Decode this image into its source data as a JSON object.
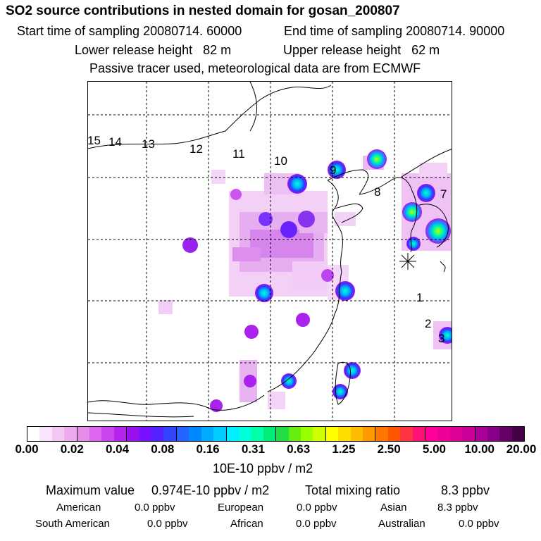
{
  "title": "SO2 source contributions in nested domain for gosan_200807",
  "header": {
    "start_time": "Start time of sampling 20080714. 60000",
    "end_time": "End time of sampling 20080714. 90000",
    "lower_height": "Lower release height   82 m",
    "upper_height": "Upper release height   62 m",
    "tracer_note": "Passive tracer used, meteorological data are from ECMWF"
  },
  "map": {
    "trajectory_labels": [
      "1",
      "2",
      "3",
      "7",
      "8",
      "9",
      "10",
      "11",
      "12",
      "13",
      "14",
      "15"
    ]
  },
  "legend": {
    "ticks": [
      "0.00",
      "0.02",
      "0.04",
      "0.08",
      "0.16",
      "0.31",
      "0.63",
      "1.25",
      "2.50",
      "5.00",
      "10.00",
      "20.00"
    ],
    "colors": [
      "#ffffff",
      "#fbe4fb",
      "#f4c6f4",
      "#eeaaee",
      "#e68ce6",
      "#dd66ee",
      "#cc44ee",
      "#b822ee",
      "#9911ee",
      "#7711ff",
      "#5522ff",
      "#3344ff",
      "#2266ff",
      "#0088ff",
      "#00aaff",
      "#00ccff",
      "#00eeff",
      "#00ffdd",
      "#00ffaa",
      "#00ee77",
      "#22dd44",
      "#66ee11",
      "#99ff00",
      "#ccff00",
      "#ffff00",
      "#ffdd00",
      "#ffbb00",
      "#ff9900",
      "#ff7700",
      "#ff5500",
      "#ff3344",
      "#ff1177",
      "#ff0099",
      "#ee0099",
      "#dd0099",
      "#cc0099",
      "#aa0099",
      "#880088",
      "#660066",
      "#440044"
    ],
    "units": "10E-10 ppbv / m2"
  },
  "stats": {
    "max_label": "Maximum value",
    "max_value": "0.974E-10 ppbv / m2",
    "total_label": "Total mixing ratio",
    "total_value": "8.3 ppbv",
    "regions": [
      {
        "name": "American",
        "value": "0.0 ppbv"
      },
      {
        "name": "European",
        "value": "0.0 ppbv"
      },
      {
        "name": "Asian",
        "value": "8.3 ppbv"
      },
      {
        "name": "South American",
        "value": "0.0 ppbv"
      },
      {
        "name": "African",
        "value": "0.0 ppbv"
      },
      {
        "name": "Australian",
        "value": "0.0 ppbv"
      }
    ]
  }
}
